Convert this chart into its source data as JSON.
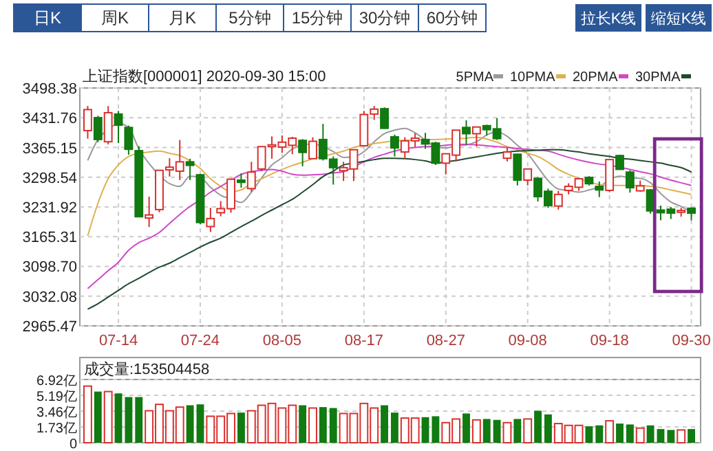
{
  "chart_data": [
    {
      "type": "other",
      "annotations": [
        "日K",
        "周K",
        "月K",
        "5分钟",
        "15分钟",
        "30分钟",
        "60分钟",
        "拉长K线",
        "缩短K线"
      ]
    },
    {
      "type": "candlestick",
      "title": "上证指数[000001]  2020-09-30 15:00",
      "categories": [
        null,
        null,
        null,
        "07-14",
        null,
        null,
        null,
        null,
        null,
        null,
        null,
        "07-24",
        null,
        null,
        null,
        null,
        null,
        null,
        null,
        "08-05",
        null,
        null,
        null,
        null,
        null,
        null,
        null,
        "08-17",
        null,
        null,
        null,
        null,
        null,
        null,
        null,
        "08-27",
        null,
        null,
        null,
        null,
        null,
        null,
        null,
        "09-08",
        null,
        null,
        null,
        null,
        null,
        null,
        null,
        "09-18",
        null,
        null,
        null,
        null,
        null,
        null,
        null,
        "09-30"
      ],
      "ohlc": [
        [
          3403,
          3458,
          3385,
          3450
        ],
        [
          3432,
          3436,
          3377,
          3383
        ],
        [
          3378,
          3458,
          3372,
          3443
        ],
        [
          3440,
          3447,
          3375,
          3415
        ],
        [
          3410,
          3414,
          3349,
          3361
        ],
        [
          3358,
          3368,
          3210,
          3210
        ],
        [
          3207,
          3255,
          3187,
          3214
        ],
        [
          3226,
          3314,
          3220,
          3314
        ],
        [
          3315,
          3341,
          3300,
          3321
        ],
        [
          3312,
          3382,
          3292,
          3333
        ],
        [
          3333,
          3340,
          3292,
          3325
        ],
        [
          3304,
          3306,
          3193,
          3197
        ],
        [
          3188,
          3230,
          3176,
          3206
        ],
        [
          3219,
          3245,
          3211,
          3228
        ],
        [
          3228,
          3296,
          3219,
          3294
        ],
        [
          3292,
          3307,
          3275,
          3287
        ],
        [
          3273,
          3333,
          3266,
          3310
        ],
        [
          3317,
          3367,
          3312,
          3367
        ],
        [
          3367,
          3390,
          3340,
          3371
        ],
        [
          3366,
          3392,
          3353,
          3377
        ],
        [
          3370,
          3389,
          3350,
          3386
        ],
        [
          3381,
          3384,
          3323,
          3354
        ],
        [
          3340,
          3388,
          3340,
          3379
        ],
        [
          3383,
          3418,
          3336,
          3340
        ],
        [
          3339,
          3345,
          3282,
          3320
        ],
        [
          3313,
          3333,
          3290,
          3320
        ],
        [
          3317,
          3361,
          3290,
          3360
        ],
        [
          3369,
          3447,
          3367,
          3439
        ],
        [
          3440,
          3458,
          3427,
          3451
        ],
        [
          3452,
          3455,
          3407,
          3408
        ],
        [
          3389,
          3394,
          3345,
          3364
        ],
        [
          3355,
          3388,
          3340,
          3380
        ],
        [
          3380,
          3397,
          3366,
          3386
        ],
        [
          3383,
          3398,
          3362,
          3373
        ],
        [
          3375,
          3378,
          3326,
          3330
        ],
        [
          3330,
          3352,
          3305,
          3351
        ],
        [
          3348,
          3404,
          3334,
          3404
        ],
        [
          3410,
          3426,
          3371,
          3396
        ],
        [
          3396,
          3411,
          3367,
          3411
        ],
        [
          3414,
          3416,
          3392,
          3405
        ],
        [
          3407,
          3431,
          3382,
          3385
        ],
        [
          3341,
          3365,
          3334,
          3355
        ],
        [
          3350,
          3351,
          3280,
          3292
        ],
        [
          3292,
          3318,
          3280,
          3317
        ],
        [
          3296,
          3299,
          3244,
          3255
        ],
        [
          3267,
          3273,
          3230,
          3235
        ],
        [
          3234,
          3268,
          3226,
          3260
        ],
        [
          3269,
          3285,
          3260,
          3278
        ],
        [
          3276,
          3297,
          3268,
          3295
        ],
        [
          3298,
          3301,
          3280,
          3284
        ],
        [
          3278,
          3289,
          3254,
          3270
        ],
        [
          3269,
          3339,
          3265,
          3338
        ],
        [
          3347,
          3349,
          3315,
          3316
        ],
        [
          3310,
          3314,
          3264,
          3275
        ],
        [
          3268,
          3291,
          3266,
          3279
        ],
        [
          3270,
          3272,
          3217,
          3223
        ],
        [
          3225,
          3235,
          3202,
          3219
        ],
        [
          3227,
          3232,
          3205,
          3218
        ],
        [
          3220,
          3230,
          3210,
          3224
        ],
        [
          3229,
          3231,
          3202,
          3218
        ]
      ],
      "colors": [
        "#d9302c",
        "#117a11",
        "#d9302c",
        "#117a11",
        "#117a11",
        "#117a11",
        "#d9302c",
        "#d9302c",
        "#d9302c",
        "#d9302c",
        "#117a11",
        "#117a11",
        "#d9302c",
        "#d9302c",
        "#d9302c",
        "#117a11",
        "#d9302c",
        "#d9302c",
        "#d9302c",
        "#d9302c",
        "#d9302c",
        "#117a11",
        "#d9302c",
        "#117a11",
        "#117a11",
        "#d9302c",
        "#d9302c",
        "#d9302c",
        "#d9302c",
        "#117a11",
        "#117a11",
        "#d9302c",
        "#d9302c",
        "#117a11",
        "#117a11",
        "#d9302c",
        "#d9302c",
        "#117a11",
        "#d9302c",
        "#117a11",
        "#117a11",
        "#d9302c",
        "#117a11",
        "#d9302c",
        "#117a11",
        "#117a11",
        "#d9302c",
        "#d9302c",
        "#d9302c",
        "#117a11",
        "#117a11",
        "#d9302c",
        "#117a11",
        "#117a11",
        "#d9302c",
        "#117a11",
        "#117a11",
        "#117a11",
        "#d9302c",
        "#117a11"
      ],
      "series": [
        {
          "name": "5PMA",
          "type": "line",
          "color": "#9a9a9a",
          "values": [
            3336,
            3383,
            3405,
            3419,
            3410,
            3362,
            3329,
            3303,
            3284,
            3278,
            3301,
            3298,
            3276,
            3258,
            3250,
            3242,
            3265,
            3297,
            3326,
            3342,
            3362,
            3371,
            3373,
            3367,
            3356,
            3343,
            3344,
            3356,
            3378,
            3396,
            3404,
            3408,
            3398,
            3382,
            3367,
            3364,
            3369,
            3371,
            3378,
            3393,
            3400,
            3390,
            3370,
            3351,
            3321,
            3291,
            3272,
            3269,
            3265,
            3270,
            3277,
            3293,
            3301,
            3297,
            3296,
            3286,
            3262,
            3243,
            3233,
            3220
          ]
        },
        {
          "name": "10PMA",
          "type": "line",
          "color": "#e0b050",
          "values": [
            3167,
            3240,
            3295,
            3326,
            3345,
            3352,
            3355,
            3357,
            3352,
            3347,
            3335,
            3318,
            3295,
            3278,
            3266,
            3270,
            3285,
            3295,
            3306,
            3316,
            3325,
            3332,
            3340,
            3345,
            3351,
            3357,
            3365,
            3370,
            3374,
            3377,
            3380,
            3381,
            3382,
            3383,
            3383,
            3384,
            3385,
            3386,
            3388,
            3384,
            3377,
            3367,
            3360,
            3352,
            3345,
            3332,
            3316,
            3305,
            3296,
            3288,
            3282,
            3280,
            3280,
            3280,
            3280,
            3278,
            3275,
            3270,
            3265,
            3260
          ]
        },
        {
          "name": "20PMA",
          "type": "line",
          "color": "#d048c8",
          "values": [
            3049,
            3069,
            3089,
            3108,
            3135,
            3152,
            3162,
            3175,
            3195,
            3215,
            3233,
            3248,
            3265,
            3278,
            3292,
            3305,
            3311,
            3314,
            3316,
            3312,
            3305,
            3303,
            3304,
            3305,
            3308,
            3311,
            3322,
            3333,
            3343,
            3350,
            3357,
            3362,
            3365,
            3367,
            3368,
            3370,
            3372,
            3372,
            3371,
            3369,
            3367,
            3365,
            3363,
            3361,
            3359,
            3357,
            3350,
            3343,
            3337,
            3332,
            3328,
            3325,
            3321,
            3316,
            3311,
            3306,
            3299,
            3292,
            3286,
            3280
          ]
        },
        {
          "name": "30PMA",
          "type": "line",
          "color": "#1f4a2e",
          "values": [
            3003,
            3015,
            3030,
            3045,
            3060,
            3072,
            3085,
            3097,
            3106,
            3118,
            3130,
            3142,
            3153,
            3162,
            3175,
            3188,
            3200,
            3213,
            3225,
            3237,
            3249,
            3265,
            3282,
            3300,
            3312,
            3326,
            3330,
            3334,
            3338,
            3341,
            3341,
            3340,
            3338,
            3335,
            3330,
            3333,
            3336,
            3340,
            3344,
            3348,
            3352,
            3355,
            3357,
            3358,
            3359,
            3360,
            3360,
            3358,
            3355,
            3351,
            3348,
            3345,
            3341,
            3339,
            3336,
            3333,
            3330,
            3325,
            3320,
            3310
          ]
        }
      ],
      "ylim": [
        2965.47,
        3498.38
      ],
      "yticks": [
        2965.47,
        3032.08,
        {
          "value": 3098.7,
          "label": "3098.70"
        },
        3165.31,
        3231.92,
        3298.54,
        3365.15,
        3431.76,
        3498.38
      ],
      "grid": true,
      "legend": "top right"
    },
    {
      "type": "bar",
      "title": "成交量:153504458",
      "categories": [
        null,
        null,
        null,
        null,
        null,
        null,
        null,
        null,
        null,
        null,
        null,
        null,
        null,
        null,
        null,
        null,
        null,
        null,
        null,
        null,
        null,
        null,
        null,
        null,
        null,
        null,
        null,
        null,
        null,
        null,
        null,
        null,
        null,
        null,
        null,
        null,
        null,
        null,
        null,
        null,
        null,
        null,
        null,
        null,
        null,
        null,
        null,
        null,
        null,
        null,
        null,
        null,
        null,
        null,
        null,
        null,
        null,
        null,
        null,
        null
      ],
      "values": [
        6.2,
        5.6,
        5.6,
        5.4,
        5.0,
        5.0,
        3.5,
        4.2,
        3.5,
        3.9,
        4.1,
        4.2,
        2.9,
        2.9,
        3.2,
        3.3,
        3.5,
        4.1,
        4.3,
        3.8,
        4.1,
        4.1,
        3.8,
        3.9,
        3.8,
        3.2,
        3.2,
        4.3,
        3.8,
        4.1,
        3.3,
        2.7,
        2.7,
        2.8,
        2.9,
        2.2,
        2.6,
        3.2,
        2.5,
        2.6,
        2.5,
        2.2,
        2.6,
        2.6,
        3.5,
        3.1,
        2.1,
        1.9,
        1.9,
        1.8,
        1.9,
        2.4,
        2.1,
        2.0,
        1.6,
        1.9,
        1.5,
        1.4,
        1.4,
        1.5
      ],
      "colors": [
        "#d9302c",
        "#117a11",
        "#d9302c",
        "#117a11",
        "#117a11",
        "#117a11",
        "#d9302c",
        "#d9302c",
        "#d9302c",
        "#d9302c",
        "#117a11",
        "#117a11",
        "#d9302c",
        "#d9302c",
        "#d9302c",
        "#117a11",
        "#d9302c",
        "#d9302c",
        "#d9302c",
        "#d9302c",
        "#d9302c",
        "#117a11",
        "#d9302c",
        "#117a11",
        "#117a11",
        "#d9302c",
        "#d9302c",
        "#d9302c",
        "#d9302c",
        "#117a11",
        "#117a11",
        "#d9302c",
        "#d9302c",
        "#117a11",
        "#117a11",
        "#d9302c",
        "#d9302c",
        "#117a11",
        "#d9302c",
        "#117a11",
        "#117a11",
        "#d9302c",
        "#117a11",
        "#d9302c",
        "#117a11",
        "#117a11",
        "#d9302c",
        "#d9302c",
        "#d9302c",
        "#117a11",
        "#117a11",
        "#d9302c",
        "#117a11",
        "#117a11",
        "#d9302c",
        "#117a11",
        "#117a11",
        "#117a11",
        "#d9302c",
        "#117a11"
      ],
      "ylim": [
        0,
        6.92
      ],
      "yticks": [
        0,
        {
          "value": 1.73,
          "label": "1.73亿"
        },
        {
          "value": 3.46,
          "label": "3.46亿"
        },
        {
          "value": 5.19,
          "label": "5.19亿"
        },
        {
          "value": 6.92,
          "label": "6.92亿"
        }
      ],
      "grid": "y",
      "tick_labels": "y"
    }
  ]
}
